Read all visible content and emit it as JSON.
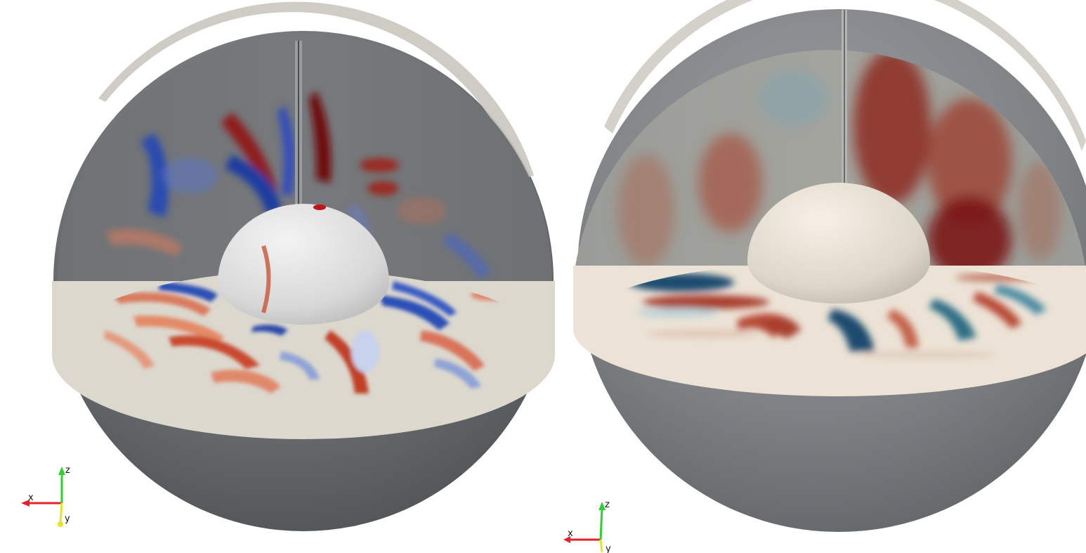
{
  "panels": [
    {
      "id": "left",
      "colormap": "cool-to-warm",
      "colors": {
        "outer_shell": "#5d6063",
        "cut_plane": "#dcd8ce",
        "inner_core": "#e6e6e6",
        "positive": "#b2182b",
        "negative": "#2c4fb5"
      }
    },
    {
      "id": "right",
      "colormap": "red-blue-diverging",
      "colors": {
        "outer_shell": "#7a7f82",
        "cut_plane": "#ece3d6",
        "inner_core": "#ece6dc",
        "positive": "#8a1a1a",
        "negative": "#1d4c6e"
      }
    }
  ],
  "axes_triad": {
    "x_label": "x",
    "y_label": "y",
    "z_label": "z",
    "colors": {
      "x": "#e8202a",
      "y": "#e5e520",
      "z": "#2ed02e"
    }
  }
}
